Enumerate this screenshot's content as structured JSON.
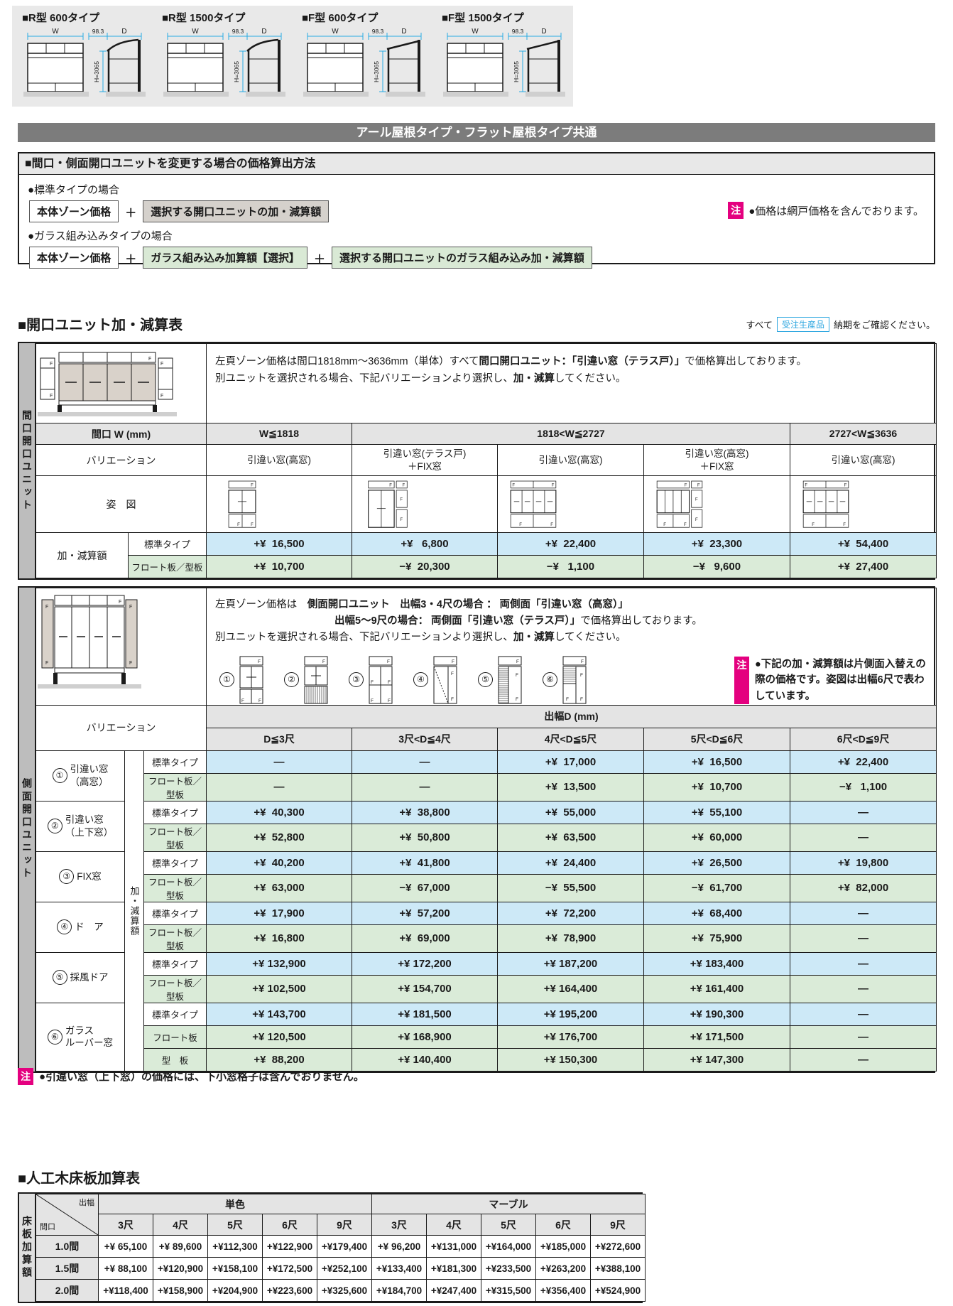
{
  "top": {
    "dims": {
      "w": "W",
      "gap": "98.3",
      "d": "D",
      "h": "H=3065"
    },
    "items": [
      {
        "title": "■R型 600タイプ",
        "roof": "R"
      },
      {
        "title": "■R型 1500タイプ",
        "roof": "R"
      },
      {
        "title": "■F型 600タイプ",
        "roof": "F"
      },
      {
        "title": "■F型 1500タイプ",
        "roof": "F"
      }
    ]
  },
  "banner": {
    "title": "アール屋根タイプ・フラット屋根タイプ共通"
  },
  "method": {
    "title": "■間口・側面開口ユニットを変更する場合の価格算出方法",
    "standard_label": "●標準タイプの場合",
    "glass_label": "●ガラス組み込みタイプの場合",
    "base_box": "本体ゾーン価格",
    "plus": "＋",
    "std_add_box": "選択する開口ユニットの加・減算額",
    "glass_add_box": "ガラス組み込み加算額【選択】",
    "glass_unit_box": "選択する開口ユニットのガラス組み込み加・減算額",
    "note_badge": "注",
    "note_text": "●価格は網戸価格を含んでおります。"
  },
  "section2": {
    "title": "■開口ユニット加・減算表",
    "all": "すべて",
    "order_badge": "受注生産品",
    "confirm": "納期をご確認ください。"
  },
  "table1": {
    "side_label": "間口開口ユニット",
    "desc1_pre": "左頁ゾーン価格は間口1818mm〜3636mm（単体）すべて",
    "desc1_bold": "間口開口ユニット：「引違い窓（テラス戸）」",
    "desc1_post": "で価格算出しております。",
    "desc2_pre": "別ユニットを選択される場合、下記バリエーションより選択し、",
    "desc2_bold": "加・減算",
    "desc2_post": "してください。",
    "width_header": "間口 W (mm)",
    "col_w1": "W≦1818",
    "col_w2": "1818<W≦2727",
    "col_w3": "2727<W≦3636",
    "variation_label": "バリエーション",
    "variations": [
      "引違い窓(高窓)",
      "引違い窓(テラス戸)\n＋FIX窓",
      "引違い窓(高窓)",
      "引違い窓(高窓)\n＋FIX窓",
      "引違い窓(高窓)"
    ],
    "figure_label": "姿　図",
    "addsub_label": "加・減算額",
    "row_std_label": "標準タイプ",
    "row_float_label": "フロート板／型板",
    "std_values": [
      "+¥  16,500",
      "+¥   6,800",
      "+¥  22,400",
      "+¥  23,300",
      "+¥  54,400"
    ],
    "float_values": [
      "+¥  10,700",
      "−¥  20,300",
      "−¥   1,100",
      "−¥   9,600",
      "+¥  27,400"
    ]
  },
  "table2": {
    "side_label": "側面開口ユニット",
    "desc1_pre": "左頁ゾーン価格は　",
    "desc1_bold": "側面開口ユニット　出幅3・4尺の場合 ： 両側面「引違い窓（高窓）」",
    "desc2_bold": "出幅5〜9尺の場合： 両側面「引違い窓（テラス戸）」",
    "desc2_post": "で価格算出しております。",
    "desc3_pre": "別ユニットを選択される場合、下記バリエーションより選択し、",
    "desc3_bold": "加・減算",
    "desc3_post": "してください。",
    "note_badge": "注",
    "note_text": "●下記の加・減算額は片側面入替えの際の価格です。姿図は出幅6尺で表わしています。",
    "variation_label": "バリエーション",
    "depth_header": "出幅D (mm)",
    "depth_cols": [
      "D≦3尺",
      "3尺<D≦4尺",
      "4尺<D≦5尺",
      "5尺<D≦6尺",
      "6尺<D≦9尺"
    ],
    "addsub_label": "加・減算額",
    "groups": [
      {
        "no": "①",
        "name": "引違い窓\n（高窓）",
        "rows": [
          {
            "type": "標準タイプ",
            "values": [
              "—",
              "—",
              "+¥  17,000",
              "+¥  16,500",
              "+¥  22,400"
            ]
          },
          {
            "type": "フロート板／型板",
            "values": [
              "—",
              "—",
              "+¥  13,500",
              "+¥  10,700",
              "−¥   1,100"
            ]
          }
        ]
      },
      {
        "no": "②",
        "name": "引違い窓\n（上下窓）",
        "rows": [
          {
            "type": "標準タイプ",
            "values": [
              "+¥  40,300",
              "+¥  38,800",
              "+¥  55,000",
              "+¥  55,100",
              "—"
            ]
          },
          {
            "type": "フロート板／型板",
            "values": [
              "+¥  52,800",
              "+¥  50,800",
              "+¥  63,500",
              "+¥  60,000",
              "—"
            ]
          }
        ]
      },
      {
        "no": "③",
        "name": "FIX窓",
        "rows": [
          {
            "type": "標準タイプ",
            "values": [
              "+¥  40,200",
              "+¥  41,800",
              "+¥  24,400",
              "+¥  26,500",
              "+¥  19,800"
            ]
          },
          {
            "type": "フロート板／型板",
            "values": [
              "+¥  63,000",
              "−¥  67,000",
              "−¥  55,500",
              "−¥  61,700",
              "+¥  82,000"
            ]
          }
        ]
      },
      {
        "no": "④",
        "name": "ド　ア",
        "rows": [
          {
            "type": "標準タイプ",
            "values": [
              "+¥  17,900",
              "+¥  57,200",
              "+¥  72,200",
              "+¥  68,400",
              "—"
            ]
          },
          {
            "type": "フロート板／型板",
            "values": [
              "+¥  16,800",
              "+¥  69,000",
              "+¥  78,900",
              "+¥  75,900",
              "—"
            ]
          }
        ]
      },
      {
        "no": "⑤",
        "name": "採風ドア",
        "rows": [
          {
            "type": "標準タイプ",
            "values": [
              "+¥ 132,900",
              "+¥ 172,200",
              "+¥ 187,200",
              "+¥ 183,400",
              "—"
            ]
          },
          {
            "type": "フロート板／型板",
            "values": [
              "+¥ 102,500",
              "+¥ 154,700",
              "+¥ 164,400",
              "+¥ 161,400",
              "—"
            ]
          }
        ]
      },
      {
        "no": "⑥",
        "name": "ガラス\nルーバー窓",
        "rows": [
          {
            "type": "標準タイプ",
            "values": [
              "+¥ 143,700",
              "+¥ 181,500",
              "+¥ 195,200",
              "+¥ 190,300",
              "—"
            ]
          },
          {
            "type": "フロート板",
            "values": [
              "+¥ 120,500",
              "+¥ 168,900",
              "+¥ 176,700",
              "+¥ 171,500",
              "—"
            ]
          },
          {
            "type": "型　板",
            "values": [
              "+¥  88,200",
              "+¥ 140,400",
              "+¥ 150,300",
              "+¥ 147,300",
              "—"
            ]
          }
        ]
      }
    ],
    "footnote_badge": "注",
    "footnote": "●引違い窓（上下窓）の価格には、下小窓格子は含んでおりません。"
  },
  "floor": {
    "title": "■人工木床板加算表",
    "side_label": "床板加算額",
    "diag_top": "出幅",
    "diag_bottom": "間口",
    "groups": [
      "単色",
      "マーブル"
    ],
    "cols": [
      "3尺",
      "4尺",
      "5尺",
      "6尺",
      "9尺"
    ],
    "rows": [
      {
        "label": "1.0間",
        "plain": [
          "+¥ 65,100",
          "+¥ 89,600",
          "+¥112,300",
          "+¥122,900",
          "+¥179,400"
        ],
        "marble": [
          "+¥ 96,200",
          "+¥131,000",
          "+¥164,000",
          "+¥185,000",
          "+¥272,600"
        ]
      },
      {
        "label": "1.5間",
        "plain": [
          "+¥ 88,100",
          "+¥120,900",
          "+¥158,100",
          "+¥172,500",
          "+¥252,100"
        ],
        "marble": [
          "+¥133,400",
          "+¥181,300",
          "+¥233,500",
          "+¥263,200",
          "+¥388,100"
        ]
      },
      {
        "label": "2.0間",
        "plain": [
          "+¥118,400",
          "+¥158,900",
          "+¥204,900",
          "+¥223,600",
          "+¥325,600"
        ],
        "marble": [
          "+¥184,700",
          "+¥247,400",
          "+¥315,500",
          "+¥356,400",
          "+¥524,900"
        ]
      }
    ]
  }
}
